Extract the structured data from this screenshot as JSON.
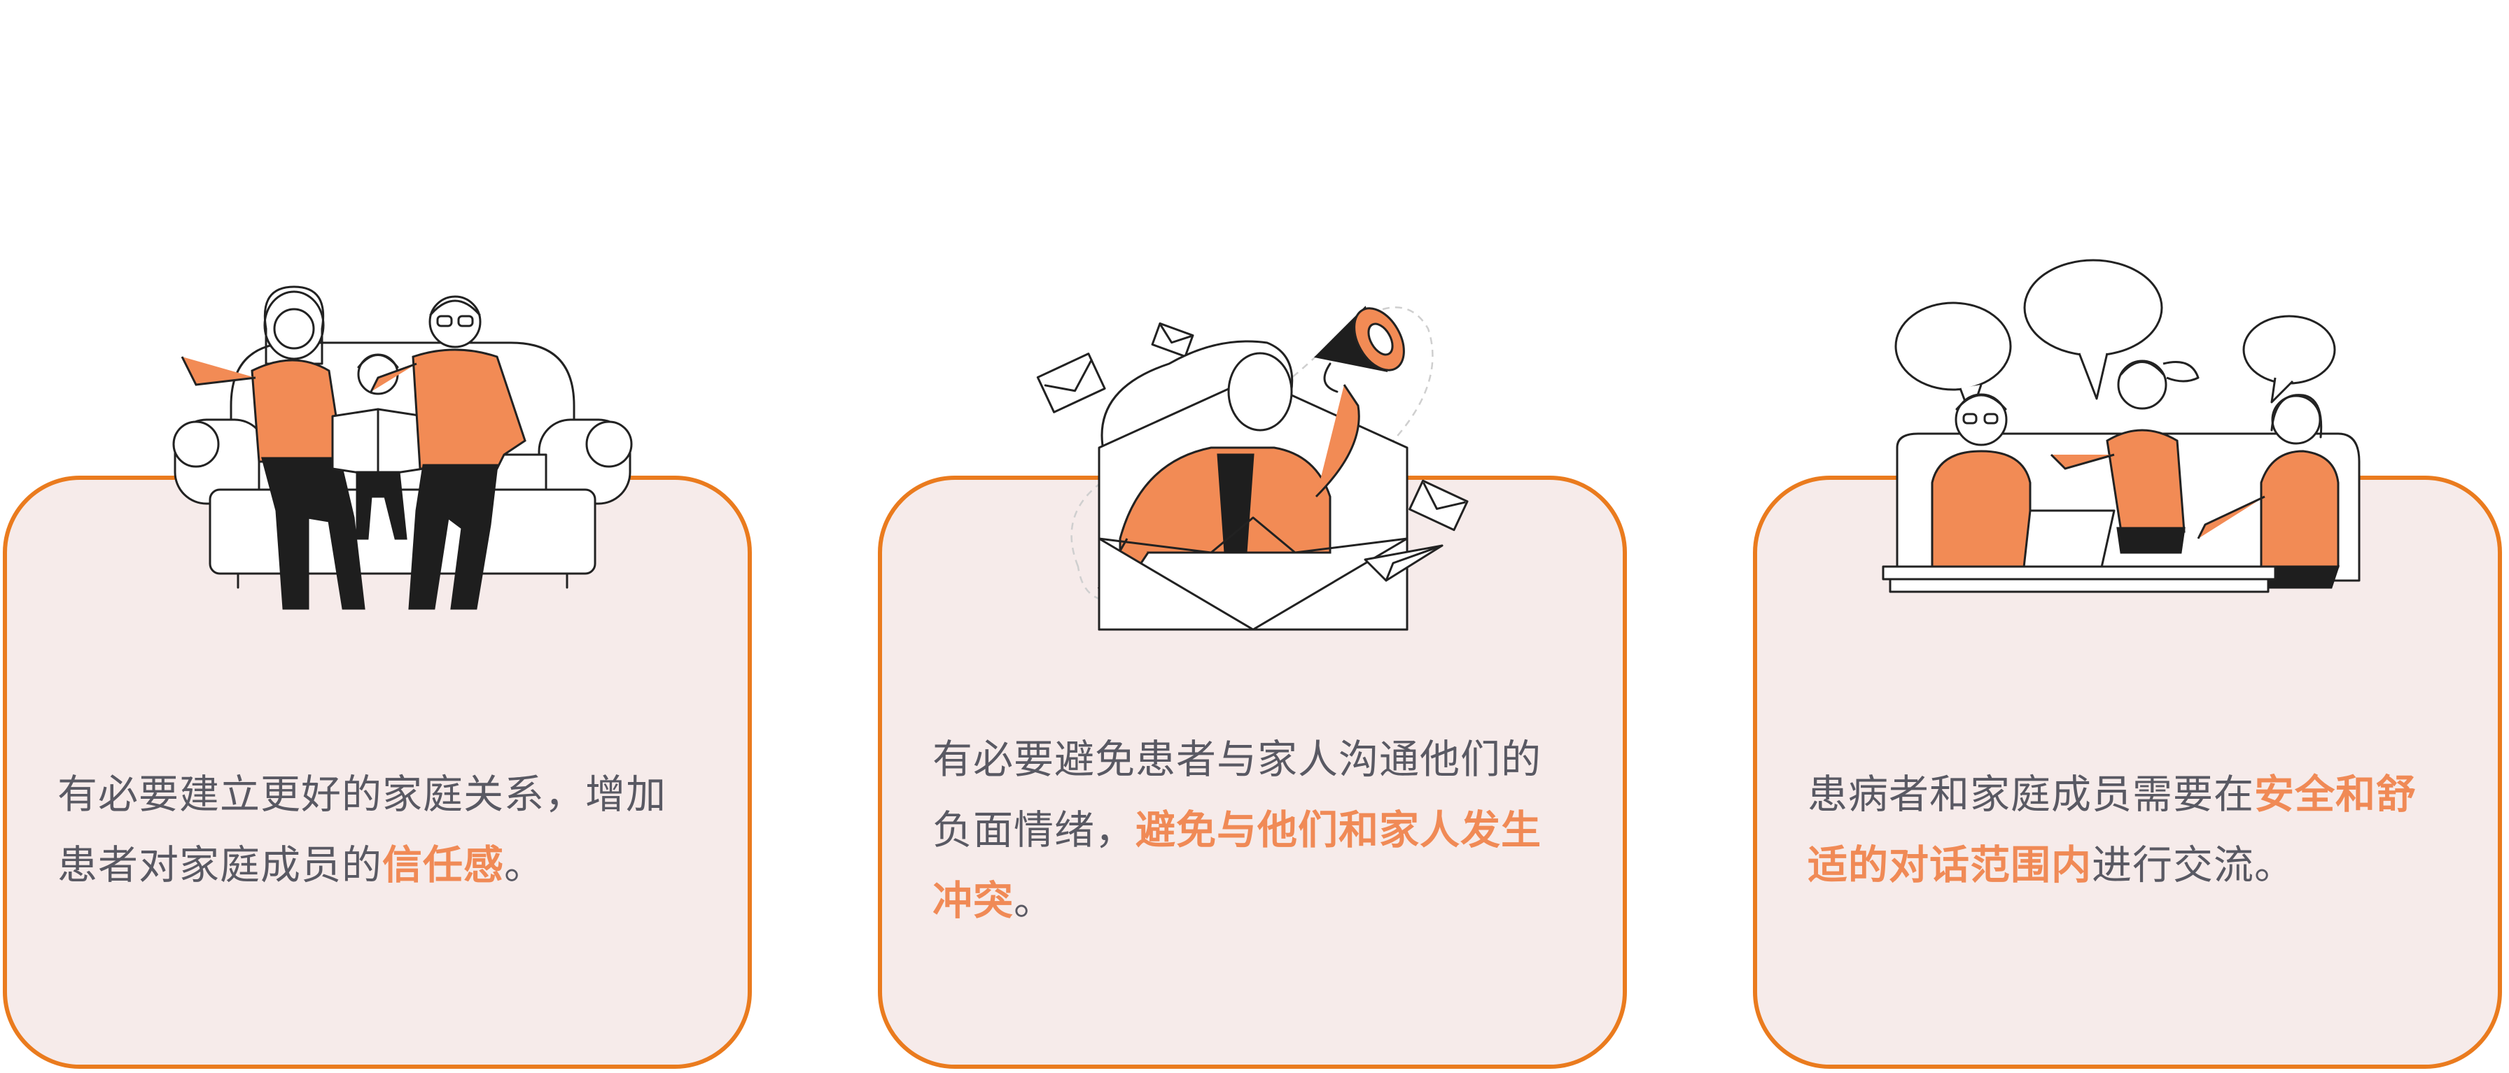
{
  "cards": [
    {
      "text_before": "有必要建立更好的家庭关系，增加患者对家庭成员的",
      "highlight": "信任感",
      "text_after": "。",
      "illustration": "family-sofa-illustration"
    },
    {
      "text_before": "有必要避免患者与家人沟通他们的负面情绪，",
      "highlight": "避免与他们和家人发生冲突",
      "text_after": "。",
      "illustration": "megaphone-envelope-illustration"
    },
    {
      "text_before": "患病者和家庭成员需要在",
      "highlight": "安全和舒适的对话范围内",
      "text_after": "进行交流。",
      "illustration": "group-conversation-illustration"
    }
  ],
  "colors": {
    "card_border": "#ea7b1e",
    "card_background": "#f6ebea",
    "highlight": "#f08a56",
    "body_text": "#595963",
    "figure_orange": "#f28b55"
  }
}
